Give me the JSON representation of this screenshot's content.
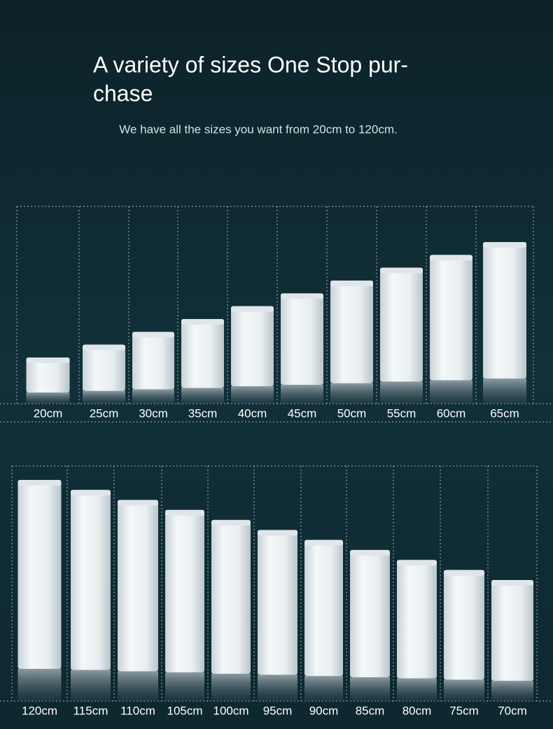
{
  "header": {
    "title_lines": [
      "A variety of sizes One Stop pur-",
      "chase"
    ],
    "subtitle": "We have all the sizes you want from 20cm to 120cm."
  },
  "rows": [
    {
      "labels": [
        "20cm",
        "25cm",
        "30cm",
        "35cm",
        "40cm",
        "45cm",
        "50cm",
        "55cm",
        "60cm",
        "65cm"
      ]
    },
    {
      "labels": [
        "120cm",
        "115cm",
        "110cm",
        "105cm",
        "100cm",
        "95cm",
        "90cm",
        "85cm",
        "80cm",
        "75cm",
        "70cm"
      ]
    }
  ]
}
